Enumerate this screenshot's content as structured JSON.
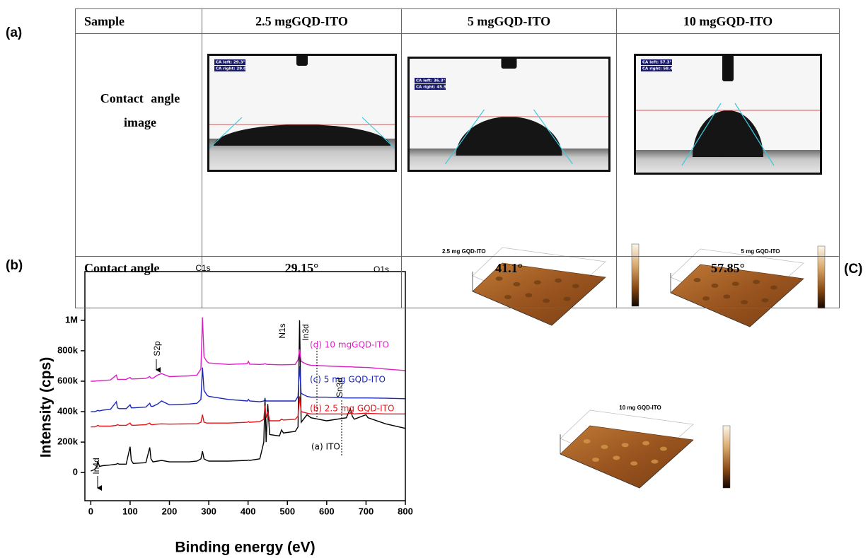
{
  "panel_labels": [
    "(a)",
    "(b)",
    "(C)"
  ],
  "table": {
    "header": [
      "Sample",
      "2.5 mgGQD-ITO",
      "5 mgGQD-ITO",
      "10 mgGQD-ITO"
    ],
    "rows": [
      [
        "Contact angle image"
      ],
      [
        "Contact angle",
        "29.15°",
        "41.1°",
        "57.85°"
      ]
    ],
    "images": [
      [
        "CA left: 29.3°",
        "CA right: 29.0°"
      ],
      [
        "CA left: 36.3°",
        "CA right: 45.9°"
      ],
      [
        "CA left: 57.3°",
        "CA right: 58.4°"
      ]
    ]
  },
  "chart_data": {
    "type": "line",
    "xlabel": "Binding energy (eV)",
    "ylabel": "Intensity (cps)",
    "x": [
      0,
      10,
      15,
      18,
      22,
      30,
      50,
      65,
      68,
      72,
      90,
      100,
      103,
      108,
      140,
      150,
      153,
      158,
      170,
      180,
      200,
      250,
      270,
      280,
      284,
      288,
      295,
      300,
      350,
      398,
      401,
      404,
      430,
      440,
      443,
      446,
      450,
      455,
      480,
      485,
      490,
      520,
      527,
      531,
      535,
      550,
      560,
      600,
      650,
      660,
      665,
      670,
      700,
      705,
      750,
      800
    ],
    "xlim": [
      -15,
      800
    ],
    "xticks": [
      0,
      100,
      200,
      300,
      400,
      500,
      600,
      700,
      800
    ],
    "ylim": [
      -185000,
      1320000
    ],
    "yticks": [
      0,
      {
        "value": 200000,
        "label": "200k"
      },
      {
        "value": 400000,
        "label": "400k"
      },
      {
        "value": 600000,
        "label": "600k"
      },
      {
        "value": 800000,
        "label": "800k"
      },
      {
        "value": 1000000,
        "label": "1M"
      }
    ],
    "series": [
      {
        "name": "(a) ITO",
        "color": "#000000",
        "values": [
          10000,
          20000,
          40000,
          75000,
          40000,
          45000,
          50000,
          55000,
          60000,
          55000,
          55000,
          170000,
          80000,
          60000,
          65000,
          165000,
          90000,
          70000,
          75000,
          80000,
          70000,
          70000,
          75000,
          90000,
          140000,
          90000,
          80000,
          75000,
          75000,
          80000,
          82000,
          80000,
          90000,
          200000,
          490000,
          200000,
          450000,
          250000,
          240000,
          280000,
          260000,
          270000,
          300000,
          1000000,
          330000,
          380000,
          360000,
          340000,
          360000,
          420000,
          370000,
          350000,
          380000,
          360000,
          320000,
          290000
        ]
      },
      {
        "name": "(b) 2.5 mg GQD-ITO",
        "color": "#e8141a",
        "values": [
          300000,
          300000,
          305000,
          310000,
          305000,
          305000,
          305000,
          310000,
          315000,
          310000,
          310000,
          325000,
          312000,
          310000,
          315000,
          325000,
          315000,
          315000,
          318000,
          320000,
          318000,
          320000,
          320000,
          330000,
          380000,
          330000,
          325000,
          325000,
          325000,
          330000,
          335000,
          330000,
          335000,
          350000,
          440000,
          360000,
          400000,
          340000,
          340000,
          350000,
          345000,
          350000,
          370000,
          500000,
          400000,
          390000,
          385000,
          385000,
          385000,
          390000,
          388000,
          385000,
          390000,
          388000,
          385000,
          385000
        ]
      },
      {
        "name": "(c) 5 mg GQD-ITO",
        "color": "#1c28b8",
        "values": [
          400000,
          400000,
          405000,
          408000,
          405000,
          410000,
          415000,
          465000,
          425000,
          420000,
          420000,
          445000,
          425000,
          425000,
          430000,
          455000,
          435000,
          435000,
          450000,
          470000,
          445000,
          450000,
          455000,
          480000,
          690000,
          540000,
          510000,
          500000,
          480000,
          470000,
          480000,
          470000,
          465000,
          470000,
          480000,
          470000,
          470000,
          470000,
          470000,
          470000,
          470000,
          470000,
          500000,
          700000,
          520000,
          500000,
          495000,
          495000,
          490000,
          490000,
          490000,
          490000,
          490000,
          490000,
          488000,
          485000
        ]
      },
      {
        "name": "(d) 10 mgGQD-ITO",
        "color": "#e01ec8",
        "values": [
          600000,
          600000,
          602000,
          603000,
          603000,
          605000,
          608000,
          640000,
          612000,
          612000,
          612000,
          625000,
          615000,
          615000,
          618000,
          630000,
          620000,
          620000,
          640000,
          650000,
          630000,
          635000,
          640000,
          680000,
          1020000,
          760000,
          730000,
          720000,
          710000,
          715000,
          730000,
          712000,
          710000,
          712000,
          715000,
          712000,
          710000,
          710000,
          708000,
          708000,
          708000,
          710000,
          740000,
          810000,
          730000,
          710000,
          705000,
          700000,
          695000,
          695000,
          694000,
          693000,
          690000,
          690000,
          680000,
          670000
        ]
      }
    ],
    "annotations": [
      "C1s",
      "O1s",
      "N1s",
      "In3d",
      "Sn3d",
      "S2p",
      "In4d"
    ]
  },
  "afm": {
    "labels": [
      "2.5 mg GQD-ITO",
      "5 mg GQD-ITO",
      "10 mg GQD-ITO"
    ]
  }
}
